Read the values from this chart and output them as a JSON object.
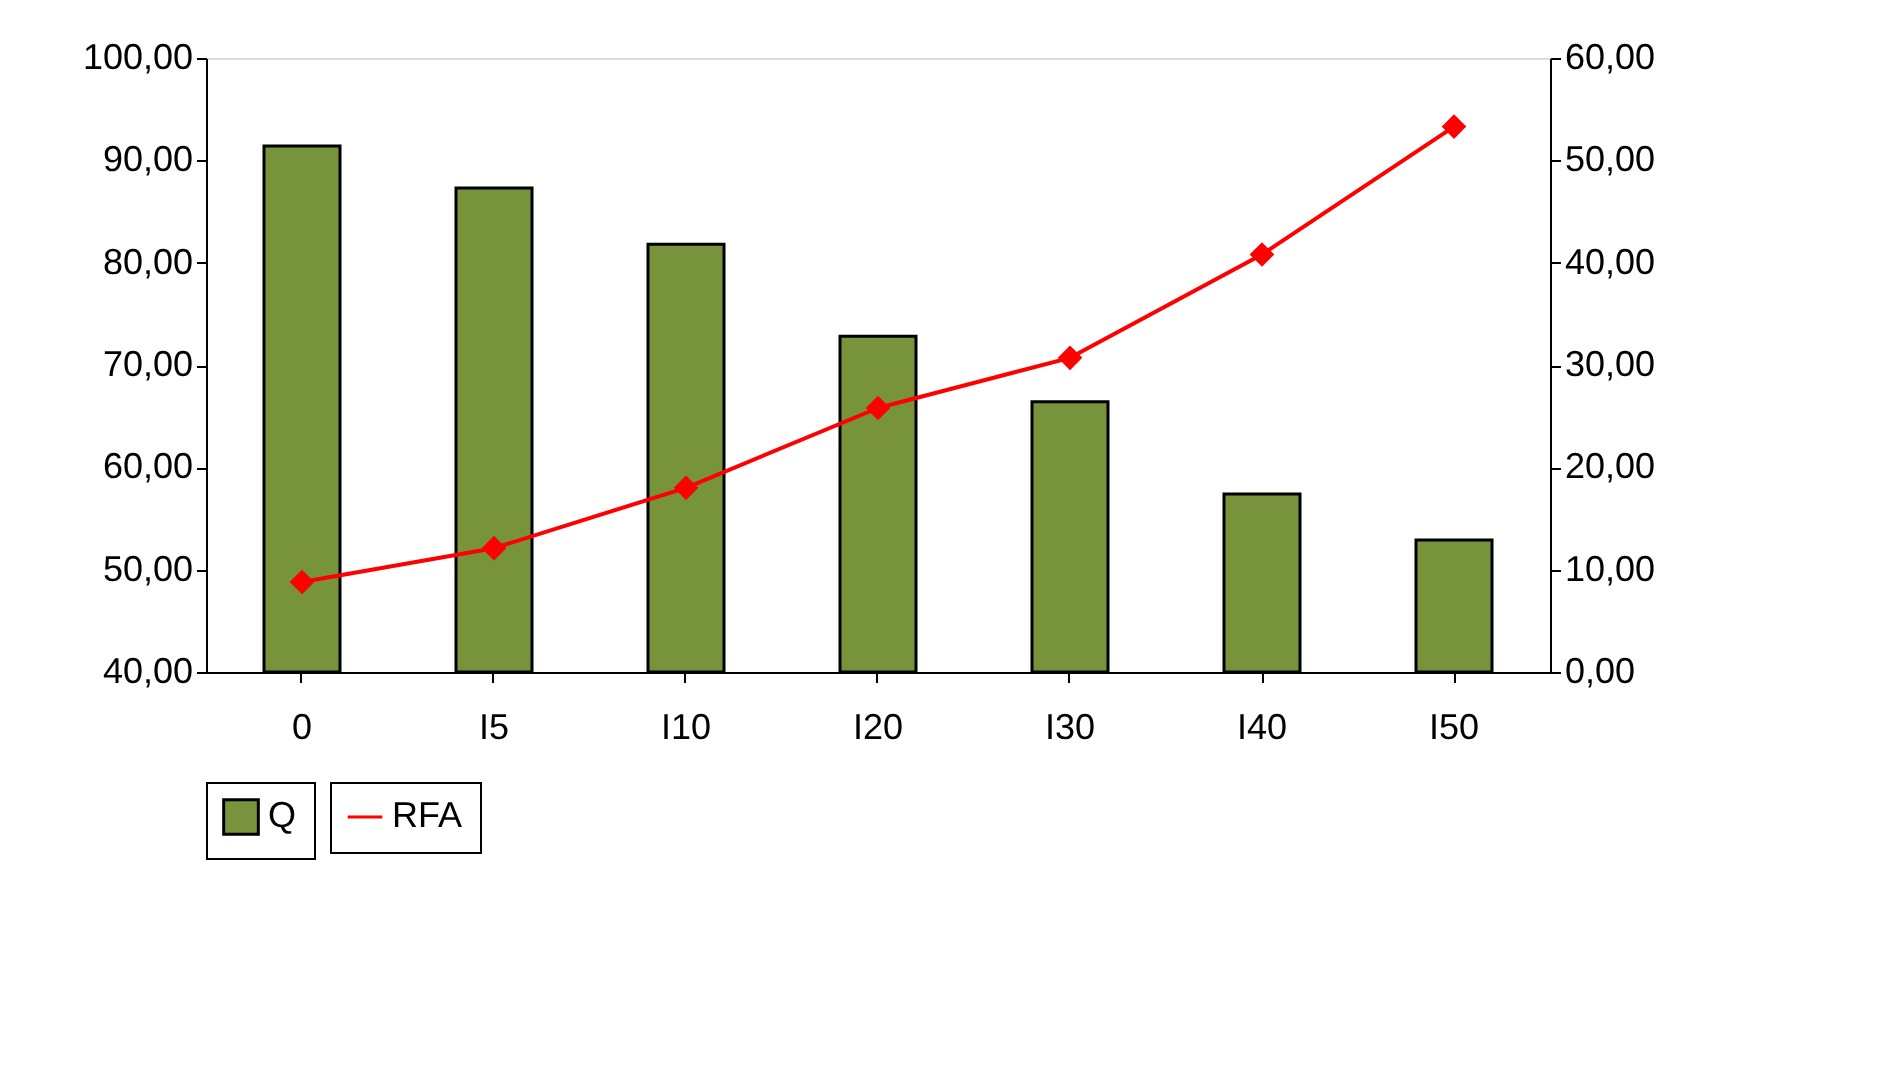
{
  "chart_data": {
    "type": "bar",
    "categories": [
      "0",
      "I5",
      "I10",
      "I20",
      "I30",
      "I40",
      "I50"
    ],
    "series": [
      {
        "name": "Q",
        "color": "#77933c",
        "values": [
          91.4,
          87.3,
          81.8,
          72.8,
          66.4,
          57.4,
          52.9
        ]
      },
      {
        "name": "RFA",
        "type": "line",
        "axis": "y2",
        "color": "#ff0000",
        "marker": "diamond",
        "values": [
          8.8,
          12.1,
          18.0,
          25.8,
          30.7,
          40.8,
          53.3
        ]
      }
    ],
    "ylim": [
      40,
      100
    ],
    "yticks": [
      {
        "value": 40,
        "label": "40,00"
      },
      {
        "value": 50,
        "label": "50,00"
      },
      {
        "value": 60,
        "label": "60,00"
      },
      {
        "value": 70,
        "label": "70,00"
      },
      {
        "value": 80,
        "label": "80,00"
      },
      {
        "value": 90,
        "label": "90,00"
      },
      {
        "value": 100,
        "label": "100,00"
      }
    ],
    "y2lim": [
      0,
      60
    ],
    "y2ticks": [
      {
        "value": 0,
        "label": "0,00"
      },
      {
        "value": 10,
        "label": "10,00"
      },
      {
        "value": 20,
        "label": "20,00"
      },
      {
        "value": 30,
        "label": "30,00"
      },
      {
        "value": 40,
        "label": "40,00"
      },
      {
        "value": 50,
        "label": "50,00"
      },
      {
        "value": 60,
        "label": "60,00"
      }
    ],
    "grid": false,
    "legend": "bottom"
  }
}
